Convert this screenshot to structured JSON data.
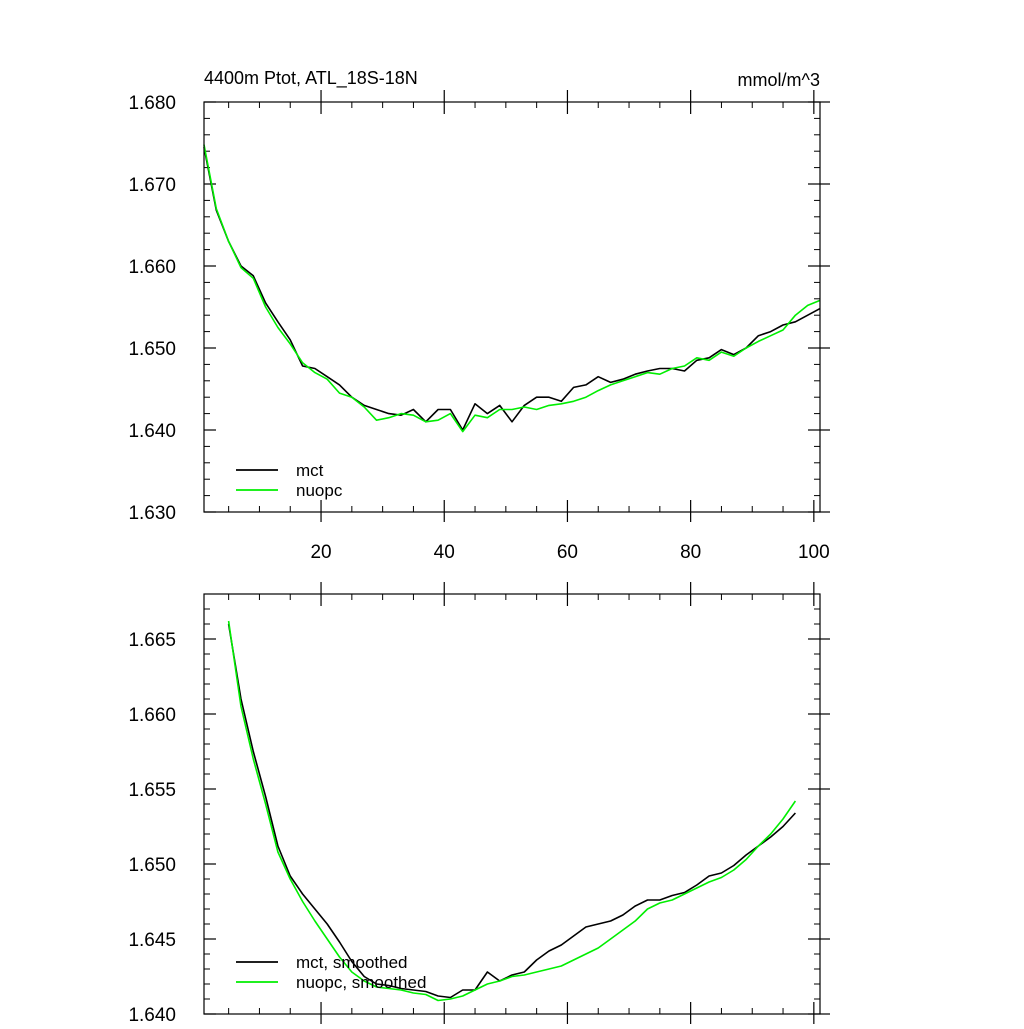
{
  "chart_data": [
    {
      "type": "line",
      "title": "4400m Ptot, ATL_18S-18N",
      "units": "mmol/m^3",
      "xlabel": "",
      "ylabel": "",
      "xlim": [
        1,
        101
      ],
      "ylim": [
        1.63,
        1.68
      ],
      "xticks": [
        20,
        40,
        60,
        80,
        100
      ],
      "xtick_labels": [
        "20",
        "40",
        "60",
        "80",
        "100"
      ],
      "yticks": [
        1.63,
        1.64,
        1.65,
        1.66,
        1.67,
        1.68
      ],
      "ytick_labels": [
        "1.630",
        "1.640",
        "1.650",
        "1.660",
        "1.670",
        "1.680"
      ],
      "legend_position": "bottom-left",
      "series": [
        {
          "name": "mct",
          "color": "#000000",
          "x": [
            1,
            3,
            5,
            7,
            9,
            11,
            13,
            15,
            17,
            19,
            21,
            23,
            25,
            27,
            29,
            31,
            33,
            35,
            37,
            39,
            41,
            43,
            45,
            47,
            49,
            51,
            53,
            55,
            57,
            59,
            61,
            63,
            65,
            67,
            69,
            71,
            73,
            75,
            77,
            79,
            81,
            83,
            85,
            87,
            89,
            91,
            93,
            95,
            97,
            99,
            101
          ],
          "values": [
            1.6745,
            1.6668,
            1.663,
            1.66,
            1.6588,
            1.6555,
            1.6532,
            1.651,
            1.6478,
            1.6475,
            1.6465,
            1.6455,
            1.644,
            1.643,
            1.6425,
            1.642,
            1.6418,
            1.6425,
            1.641,
            1.6425,
            1.6425,
            1.64,
            1.6432,
            1.642,
            1.643,
            1.641,
            1.643,
            1.644,
            1.644,
            1.6435,
            1.6452,
            1.6455,
            1.6465,
            1.6458,
            1.6462,
            1.6468,
            1.6472,
            1.6475,
            1.6475,
            1.6472,
            1.6485,
            1.6488,
            1.6498,
            1.6492,
            1.65,
            1.6515,
            1.652,
            1.6528,
            1.6532,
            1.654,
            1.6548
          ]
        },
        {
          "name": "nuopc",
          "color": "#00ee00",
          "x": [
            1,
            3,
            5,
            7,
            9,
            11,
            13,
            15,
            17,
            19,
            21,
            23,
            25,
            27,
            29,
            31,
            33,
            35,
            37,
            39,
            41,
            43,
            45,
            47,
            49,
            51,
            53,
            55,
            57,
            59,
            61,
            63,
            65,
            67,
            69,
            71,
            73,
            75,
            77,
            79,
            81,
            83,
            85,
            87,
            89,
            91,
            93,
            95,
            97,
            99,
            101
          ],
          "values": [
            1.6748,
            1.667,
            1.663,
            1.6598,
            1.6585,
            1.655,
            1.6525,
            1.6505,
            1.6482,
            1.647,
            1.6462,
            1.6445,
            1.644,
            1.6428,
            1.6412,
            1.6415,
            1.642,
            1.6418,
            1.641,
            1.6412,
            1.642,
            1.6398,
            1.6418,
            1.6415,
            1.6425,
            1.6425,
            1.6428,
            1.6425,
            1.643,
            1.6432,
            1.6435,
            1.644,
            1.6448,
            1.6455,
            1.646,
            1.6465,
            1.647,
            1.6468,
            1.6475,
            1.6478,
            1.6488,
            1.6485,
            1.6495,
            1.649,
            1.65,
            1.6508,
            1.6515,
            1.6522,
            1.654,
            1.6552,
            1.6558
          ]
        }
      ]
    },
    {
      "type": "line",
      "title": "",
      "xlabel": "",
      "ylabel": "",
      "xlim": [
        1,
        101
      ],
      "ylim": [
        1.64,
        1.668
      ],
      "xticks": [
        20,
        40,
        60,
        80,
        100
      ],
      "xtick_labels": [],
      "yticks": [
        1.64,
        1.645,
        1.65,
        1.655,
        1.66,
        1.665
      ],
      "ytick_labels": [
        "1.640",
        "1.645",
        "1.650",
        "1.655",
        "1.660",
        "1.665"
      ],
      "legend_position": "bottom-left",
      "series": [
        {
          "name": "mct, smoothed",
          "color": "#000000",
          "x": [
            5,
            7,
            9,
            11,
            13,
            15,
            17,
            19,
            21,
            23,
            25,
            27,
            29,
            31,
            33,
            35,
            37,
            39,
            41,
            43,
            45,
            47,
            49,
            51,
            53,
            55,
            57,
            59,
            61,
            63,
            65,
            67,
            69,
            71,
            73,
            75,
            77,
            79,
            81,
            83,
            85,
            87,
            89,
            91,
            93,
            95,
            97
          ],
          "values": [
            1.666,
            1.661,
            1.6575,
            1.6545,
            1.6512,
            1.6492,
            1.648,
            1.647,
            1.646,
            1.6448,
            1.6435,
            1.6425,
            1.642,
            1.6419,
            1.6417,
            1.6416,
            1.6415,
            1.6412,
            1.6411,
            1.6416,
            1.6416,
            1.6428,
            1.6422,
            1.6426,
            1.6428,
            1.6436,
            1.6442,
            1.6446,
            1.6452,
            1.6458,
            1.646,
            1.6462,
            1.6466,
            1.6472,
            1.6476,
            1.6476,
            1.6479,
            1.6481,
            1.6486,
            1.6492,
            1.6494,
            1.6499,
            1.6506,
            1.6512,
            1.6518,
            1.6525,
            1.6534
          ]
        },
        {
          "name": "nuopc, smoothed",
          "color": "#00ee00",
          "x": [
            5,
            7,
            9,
            11,
            13,
            15,
            17,
            19,
            21,
            23,
            25,
            27,
            29,
            31,
            33,
            35,
            37,
            39,
            41,
            43,
            45,
            47,
            49,
            51,
            53,
            55,
            57,
            59,
            61,
            63,
            65,
            67,
            69,
            71,
            73,
            75,
            77,
            79,
            81,
            83,
            85,
            87,
            89,
            91,
            93,
            95,
            97
          ],
          "values": [
            1.6662,
            1.6605,
            1.657,
            1.654,
            1.6508,
            1.649,
            1.6475,
            1.6462,
            1.645,
            1.6438,
            1.6428,
            1.6422,
            1.6418,
            1.6417,
            1.6416,
            1.6414,
            1.6413,
            1.6409,
            1.641,
            1.6412,
            1.6416,
            1.642,
            1.6422,
            1.6425,
            1.6426,
            1.6428,
            1.643,
            1.6432,
            1.6436,
            1.644,
            1.6444,
            1.645,
            1.6456,
            1.6462,
            1.647,
            1.6474,
            1.6476,
            1.648,
            1.6484,
            1.6488,
            1.6491,
            1.6496,
            1.6503,
            1.6512,
            1.652,
            1.653,
            1.6542
          ]
        }
      ]
    }
  ]
}
